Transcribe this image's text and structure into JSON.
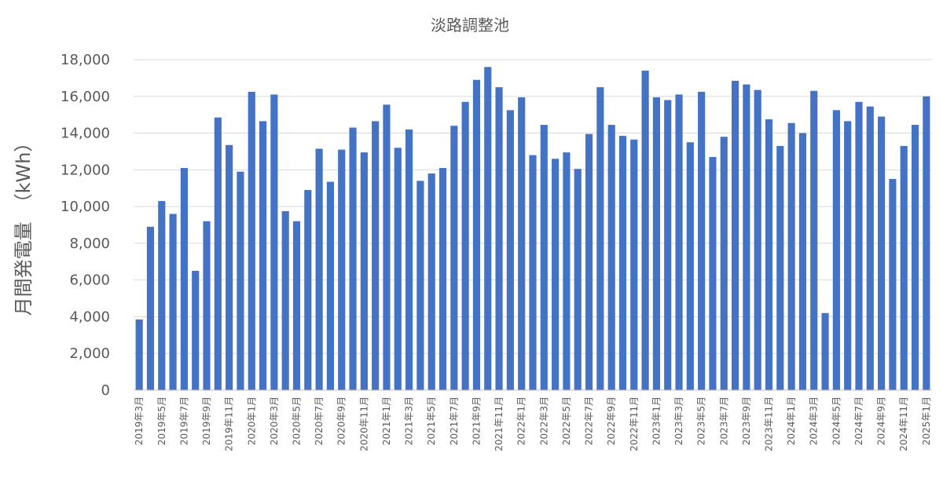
{
  "chart_data": {
    "type": "bar",
    "title": "淡路調整池",
    "ylabel": "月間発電量　（kWh）",
    "xlabel": "",
    "ylim": [
      0,
      18000
    ],
    "yticks": [
      "0",
      "2,000",
      "4,000",
      "6,000",
      "8,000",
      "10,000",
      "12,000",
      "14,000",
      "16,000",
      "18,000"
    ],
    "grid": true,
    "bar_color": "#4472c4",
    "categories": [
      "2019年3月",
      "2019年4月",
      "2019年5月",
      "2019年6月",
      "2019年7月",
      "2019年8月",
      "2019年9月",
      "2019年10月",
      "2019年11月",
      "2019年12月",
      "2020年1月",
      "2020年2月",
      "2020年3月",
      "2020年4月",
      "2020年5月",
      "2020年6月",
      "2020年7月",
      "2020年8月",
      "2020年9月",
      "2020年10月",
      "2020年11月",
      "2020年12月",
      "2021年1月",
      "2021年2月",
      "2021年3月",
      "2021年4月",
      "2021年5月",
      "2021年6月",
      "2021年7月",
      "2021年8月",
      "2021年9月",
      "2021年10月",
      "2021年11月",
      "2021年12月",
      "2022年1月",
      "2022年2月",
      "2022年3月",
      "2022年4月",
      "2022年5月",
      "2022年6月",
      "2022年7月",
      "2022年8月",
      "2022年9月",
      "2022年10月",
      "2022年11月",
      "2022年12月",
      "2023年1月",
      "2023年2月",
      "2023年3月",
      "2023年4月",
      "2023年5月",
      "2023年6月",
      "2023年7月",
      "2023年8月",
      "2023年9月",
      "2023年10月",
      "2023年11月",
      "2023年12月",
      "2024年1月",
      "2024年2月",
      "2024年3月",
      "2024年4月",
      "2024年5月",
      "2024年6月",
      "2024年7月",
      "2024年8月",
      "2024年9月",
      "2024年10月",
      "2024年11月",
      "2024年12月",
      "2025年1月"
    ],
    "values": [
      3850,
      8900,
      10300,
      9600,
      12100,
      6500,
      9200,
      14850,
      13350,
      11900,
      16250,
      14650,
      16100,
      9750,
      9200,
      10900,
      13150,
      11350,
      13100,
      14300,
      12950,
      14650,
      15550,
      13200,
      14200,
      11400,
      11800,
      12100,
      14400,
      15700,
      16900,
      17600,
      16500,
      15250,
      15950,
      12800,
      14450,
      12600,
      12950,
      12050,
      13950,
      16500,
      14450,
      13850,
      13650,
      17400,
      15950,
      15800,
      16100,
      13500,
      16250,
      12700,
      13800,
      16850,
      16650,
      16350,
      14750,
      13300,
      14550,
      14000,
      16300,
      4200,
      15250,
      14650,
      15700,
      15450,
      14900,
      11500,
      13300,
      14450,
      16000
    ]
  }
}
